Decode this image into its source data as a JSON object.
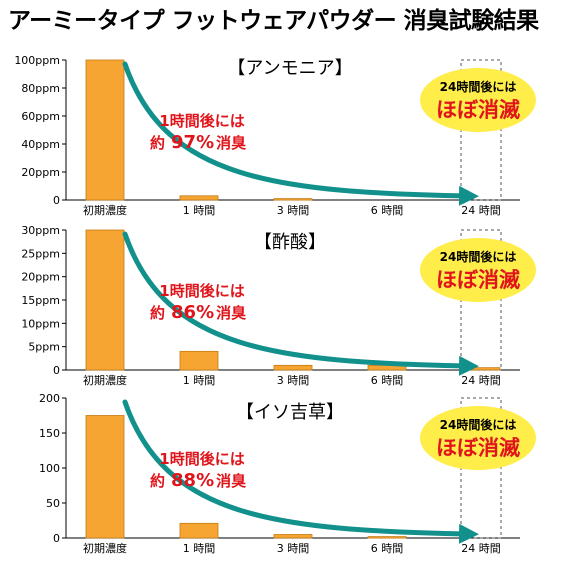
{
  "title": "アーミータイプ フットウェアパウダー 消臭試験結果",
  "colors": {
    "bar": "#f6a533",
    "bar_edge": "#c67a12",
    "arrow": "#12918c",
    "badge": "#ffee4a",
    "note": "#e0151b"
  },
  "chart_data": [
    {
      "type": "bar",
      "title": "【アンモニア】",
      "categories": [
        "初期濃度",
        "1 時間",
        "3 時間",
        "6 時間",
        "24 時間"
      ],
      "values": [
        100,
        3,
        1,
        0,
        0
      ],
      "ylim": [
        0,
        100
      ],
      "yticks": [
        {
          "value": 0,
          "label": "0"
        },
        {
          "value": 20,
          "label": "20ppm"
        },
        {
          "value": 40,
          "label": "40ppm"
        },
        {
          "value": 60,
          "label": "60ppm"
        },
        {
          "value": 80,
          "label": "80ppm"
        },
        {
          "value": 100,
          "label": "100ppm"
        }
      ],
      "annotation": {
        "line1": "1時間後には",
        "line2_prefix": "約",
        "line2_value": "97%",
        "line2_suffix": "消臭"
      },
      "badge": {
        "line1": "24時間後には",
        "line2": "ほぼ消滅"
      }
    },
    {
      "type": "bar",
      "title": "【酢酸】",
      "categories": [
        "初期濃度",
        "1 時間",
        "3 時間",
        "6 時間",
        "24 時間"
      ],
      "values": [
        30,
        4,
        1,
        1,
        0.5
      ],
      "ylim": [
        0,
        30
      ],
      "yticks": [
        {
          "value": 0,
          "label": "0"
        },
        {
          "value": 5,
          "label": "5ppm"
        },
        {
          "value": 10,
          "label": "10ppm"
        },
        {
          "value": 15,
          "label": "15ppm"
        },
        {
          "value": 20,
          "label": "20ppm"
        },
        {
          "value": 25,
          "label": "25ppm"
        },
        {
          "value": 30,
          "label": "30ppm"
        }
      ],
      "annotation": {
        "line1": "1時間後には",
        "line2_prefix": "約",
        "line2_value": "86%",
        "line2_suffix": "消臭"
      },
      "badge": {
        "line1": "24時間後には",
        "line2": "ほぼ消滅"
      }
    },
    {
      "type": "bar",
      "title": "【イソ吉草】",
      "categories": [
        "初期濃度",
        "1 時間",
        "3 時間",
        "6 時間",
        "24 時間"
      ],
      "values": [
        175,
        21,
        5,
        2,
        0
      ],
      "ylim": [
        0,
        200
      ],
      "yticks": [
        {
          "value": 0,
          "label": "0"
        },
        {
          "value": 50,
          "label": "50"
        },
        {
          "value": 100,
          "label": "100"
        },
        {
          "value": 150,
          "label": "150"
        },
        {
          "value": 200,
          "label": "200"
        }
      ],
      "annotation": {
        "line1": "1時間後には",
        "line2_prefix": "約",
        "line2_value": "88%",
        "line2_suffix": "消臭"
      },
      "badge": {
        "line1": "24時間後には",
        "line2": "ほぼ消滅"
      }
    }
  ]
}
